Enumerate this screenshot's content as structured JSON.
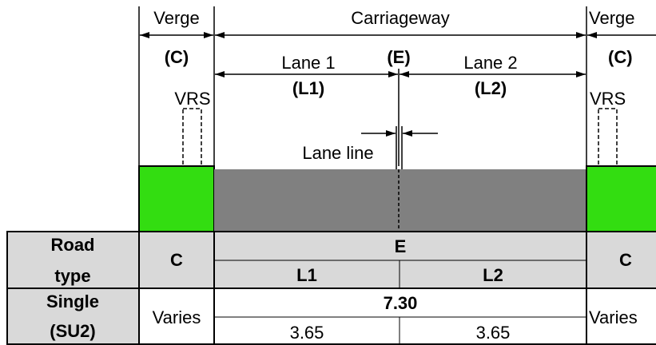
{
  "diagram": {
    "labels": {
      "verge_left": "Verge",
      "verge_right": "Verge",
      "carriageway": "Carriageway",
      "verge_left_code": "(C)",
      "verge_right_code": "(C)",
      "lane1": "Lane 1",
      "lane1_code": "(L1)",
      "lane2": "Lane 2",
      "lane2_code": "(L2)",
      "edge_code": "(E)",
      "vrs_left": "VRS",
      "vrs_right": "VRS",
      "lane_line": "Lane line"
    },
    "colors": {
      "verge_fill": "#33dd11",
      "carriageway_fill": "#808080",
      "table_shade": "#d9d9d9",
      "line": "#000000"
    }
  },
  "table": {
    "header": {
      "road_type_line1": "Road",
      "road_type_line2": "type",
      "verge_left_col": "C",
      "carriageway_col": "E",
      "lane1_col": "L1",
      "lane2_col": "L2",
      "verge_right_col": "C"
    },
    "row": {
      "label_line1": "Single",
      "label_line2": "(SU2)",
      "verge_left_value": "Varies",
      "carriageway_total": "7.30",
      "lane1_value": "3.65",
      "lane2_value": "3.65",
      "verge_right_value": "Varies"
    }
  }
}
